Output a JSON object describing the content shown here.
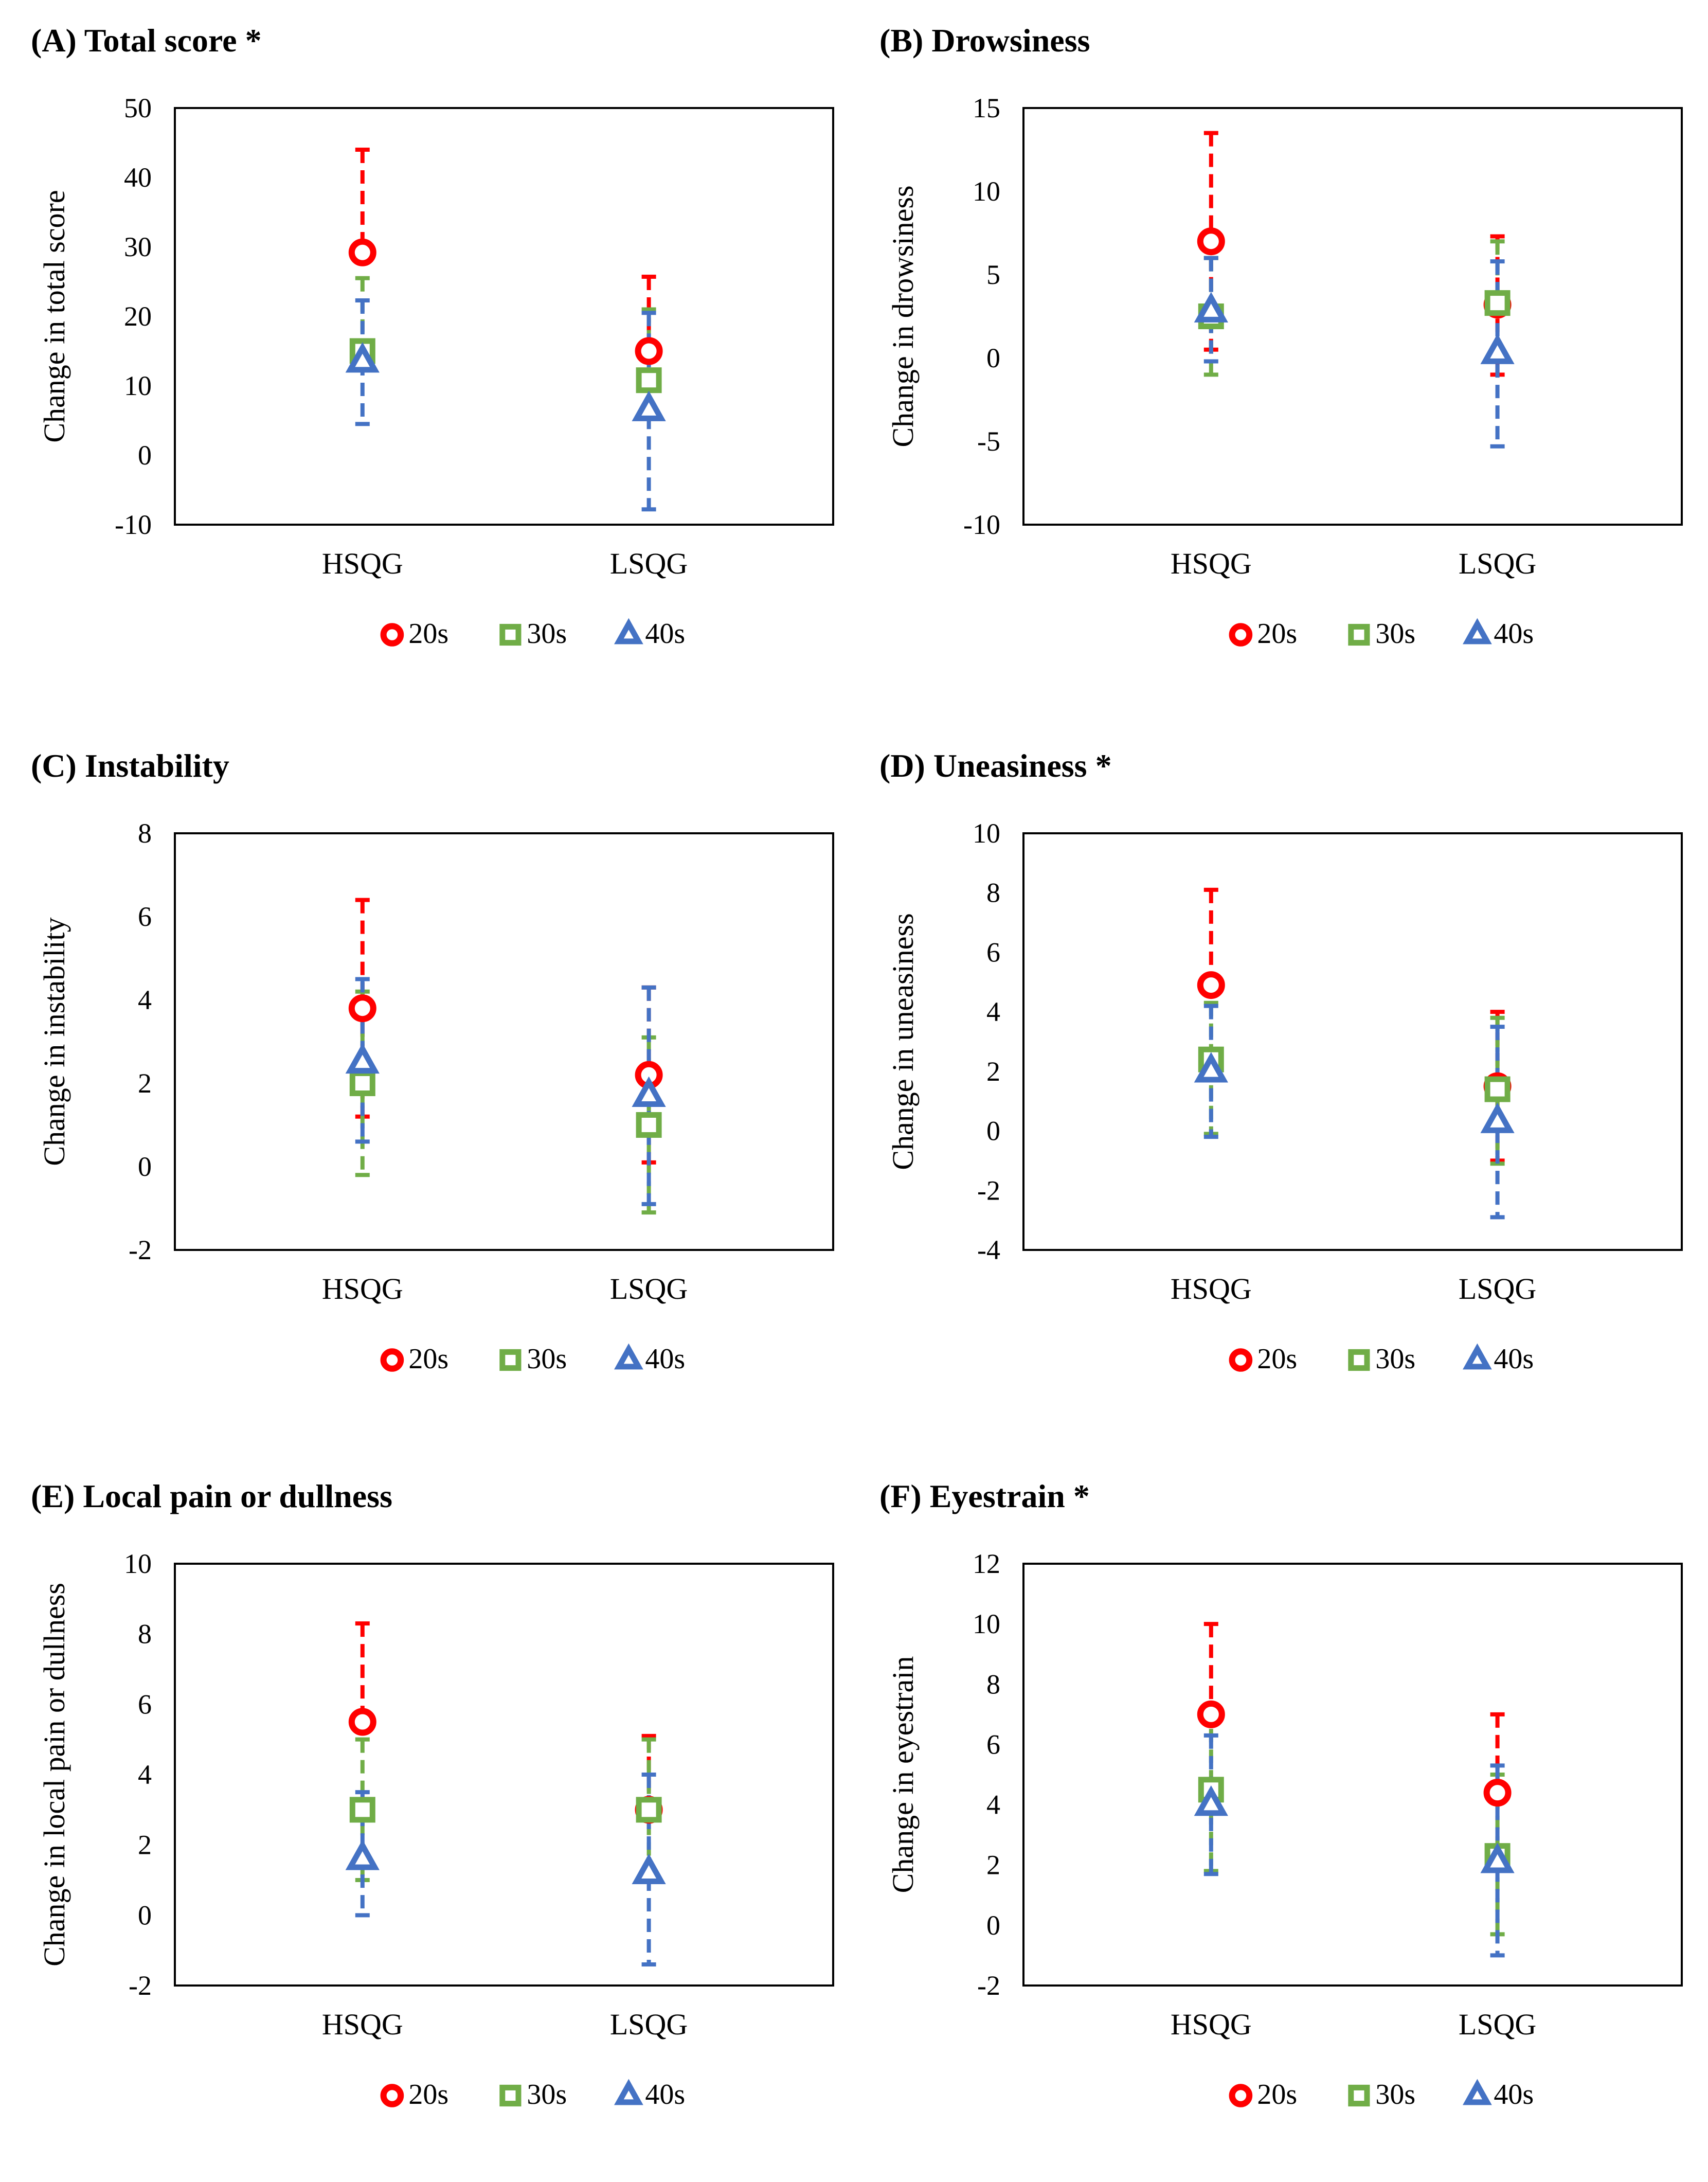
{
  "figure": {
    "legend_labels": [
      "20s",
      "30s",
      "40s"
    ],
    "colors": {
      "20s": "#ff0000",
      "30s": "#70ad47",
      "40s": "#4472c4"
    }
  },
  "chart_data": [
    {
      "type": "scatter",
      "title": "(A) Total score *",
      "ylabel": "Change in total score",
      "xlabel": "",
      "categories": [
        "HSQG",
        "LSQG"
      ],
      "ylim": [
        -10,
        50
      ],
      "yticks": [
        -10,
        0,
        10,
        20,
        30,
        40,
        50
      ],
      "series": [
        {
          "name": "20s",
          "marker": "circle",
          "values": [
            29.2,
            15
          ],
          "err_low": [
            null,
            null
          ],
          "err_high": [
            44,
            25.7
          ]
        },
        {
          "name": "30s",
          "marker": "square",
          "values": [
            15,
            10.8
          ],
          "err_low": [
            null,
            null
          ],
          "err_high": [
            25.5,
            21
          ]
        },
        {
          "name": "40s",
          "marker": "triangle",
          "values": [
            13.5,
            6.5
          ],
          "err_low": [
            4.5,
            -7.8
          ],
          "err_high": [
            22.3,
            20.5
          ]
        }
      ]
    },
    {
      "type": "scatter",
      "title": "(B) Drowsiness",
      "ylabel": "Change in drowsiness",
      "xlabel": "",
      "categories": [
        "HSQG",
        "LSQG"
      ],
      "ylim": [
        -10,
        15
      ],
      "yticks": [
        -10,
        -5,
        0,
        5,
        10,
        15
      ],
      "series": [
        {
          "name": "20s",
          "marker": "circle",
          "values": [
            7,
            3.2
          ],
          "err_low": [
            0.5,
            -1
          ],
          "err_high": [
            13.5,
            7.3
          ]
        },
        {
          "name": "30s",
          "marker": "square",
          "values": [
            2.5,
            3.3
          ],
          "err_low": [
            -1,
            null
          ],
          "err_high": [
            6,
            7
          ]
        },
        {
          "name": "40s",
          "marker": "triangle",
          "values": [
            2.8,
            0.3
          ],
          "err_low": [
            -0.2,
            -5.3
          ],
          "err_high": [
            6,
            5.8
          ]
        }
      ]
    },
    {
      "type": "scatter",
      "title": "(C) Instability",
      "ylabel": "Change in instability",
      "xlabel": "",
      "categories": [
        "HSQG",
        "LSQG"
      ],
      "ylim": [
        -2,
        8
      ],
      "yticks": [
        -2,
        0,
        2,
        4,
        6,
        8
      ],
      "series": [
        {
          "name": "20s",
          "marker": "circle",
          "values": [
            3.8,
            2.2
          ],
          "err_low": [
            1.2,
            0.1
          ],
          "err_high": [
            6.4,
            4.3
          ]
        },
        {
          "name": "30s",
          "marker": "square",
          "values": [
            2,
            1
          ],
          "err_low": [
            -0.2,
            -1.1
          ],
          "err_high": [
            4.2,
            3.1
          ]
        },
        {
          "name": "40s",
          "marker": "triangle",
          "values": [
            2.5,
            1.7
          ],
          "err_low": [
            0.6,
            -0.9
          ],
          "err_high": [
            4.5,
            4.3
          ]
        }
      ]
    },
    {
      "type": "scatter",
      "title": "(D) Uneasiness *",
      "ylabel": "Change in uneasiness",
      "xlabel": "",
      "categories": [
        "HSQG",
        "LSQG"
      ],
      "ylim": [
        -4,
        10
      ],
      "yticks": [
        -4,
        -2,
        0,
        2,
        4,
        6,
        8,
        10
      ],
      "series": [
        {
          "name": "20s",
          "marker": "circle",
          "values": [
            4.9,
            1.5
          ],
          "err_low": [
            null,
            -1
          ],
          "err_high": [
            8.1,
            4
          ]
        },
        {
          "name": "30s",
          "marker": "square",
          "values": [
            2.4,
            1.4
          ],
          "err_low": [
            -0.1,
            -1.1
          ],
          "err_high": [
            4.3,
            3.8
          ]
        },
        {
          "name": "40s",
          "marker": "triangle",
          "values": [
            2,
            0.3
          ],
          "err_low": [
            -0.2,
            -2.9
          ],
          "err_high": [
            4.2,
            3.5
          ]
        }
      ]
    },
    {
      "type": "scatter",
      "title": "(E) Local pain or dullness",
      "ylabel": "Change in local pain or dullness",
      "xlabel": "",
      "categories": [
        "HSQG",
        "LSQG"
      ],
      "ylim": [
        -2,
        10
      ],
      "yticks": [
        -2,
        0,
        2,
        4,
        6,
        8,
        10
      ],
      "series": [
        {
          "name": "20s",
          "marker": "circle",
          "values": [
            5.5,
            3
          ],
          "err_low": [
            null,
            null
          ],
          "err_high": [
            8.3,
            5.1
          ]
        },
        {
          "name": "30s",
          "marker": "square",
          "values": [
            3,
            3
          ],
          "err_low": [
            1,
            1
          ],
          "err_high": [
            5,
            5
          ]
        },
        {
          "name": "40s",
          "marker": "triangle",
          "values": [
            1.6,
            1.2
          ],
          "err_low": [
            0,
            -1.4
          ],
          "err_high": [
            3.5,
            4
          ]
        }
      ]
    },
    {
      "type": "scatter",
      "title": "(F) Eyestrain *",
      "ylabel": "Change in eyestrain",
      "xlabel": "",
      "categories": [
        "HSQG",
        "LSQG"
      ],
      "ylim": [
        -2,
        12
      ],
      "yticks": [
        -2,
        0,
        2,
        4,
        6,
        8,
        10,
        12
      ],
      "series": [
        {
          "name": "20s",
          "marker": "circle",
          "values": [
            7,
            4.4
          ],
          "err_low": [
            null,
            null
          ],
          "err_high": [
            10,
            7
          ]
        },
        {
          "name": "30s",
          "marker": "square",
          "values": [
            4.5,
            2.3
          ],
          "err_low": [
            1.8,
            -0.3
          ],
          "err_high": [
            7.2,
            5
          ]
        },
        {
          "name": "40s",
          "marker": "triangle",
          "values": [
            4,
            2.1
          ],
          "err_low": [
            1.7,
            -1
          ],
          "err_high": [
            6.3,
            5.3
          ]
        }
      ]
    }
  ]
}
